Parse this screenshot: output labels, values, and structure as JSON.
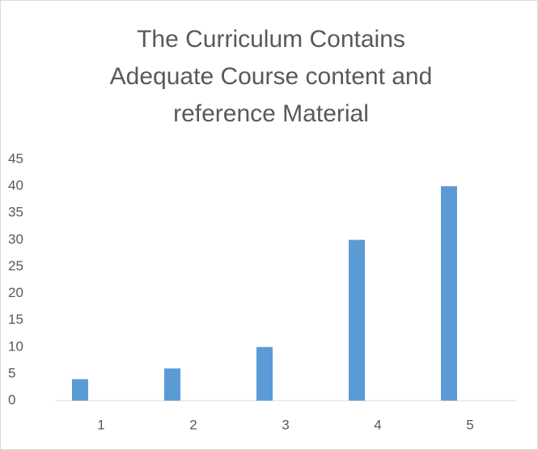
{
  "chart_data": {
    "type": "bar",
    "title": "The Curriculum Contains Adequate Course content and reference Material",
    "categories": [
      "1",
      "2",
      "3",
      "4",
      "5"
    ],
    "values": [
      4,
      6,
      10,
      30,
      40
    ],
    "color": "#5b9bd5",
    "ylim": [
      0,
      45
    ],
    "yticks": [
      0,
      5,
      10,
      15,
      20,
      25,
      30,
      35,
      40,
      45
    ],
    "grid": false
  }
}
